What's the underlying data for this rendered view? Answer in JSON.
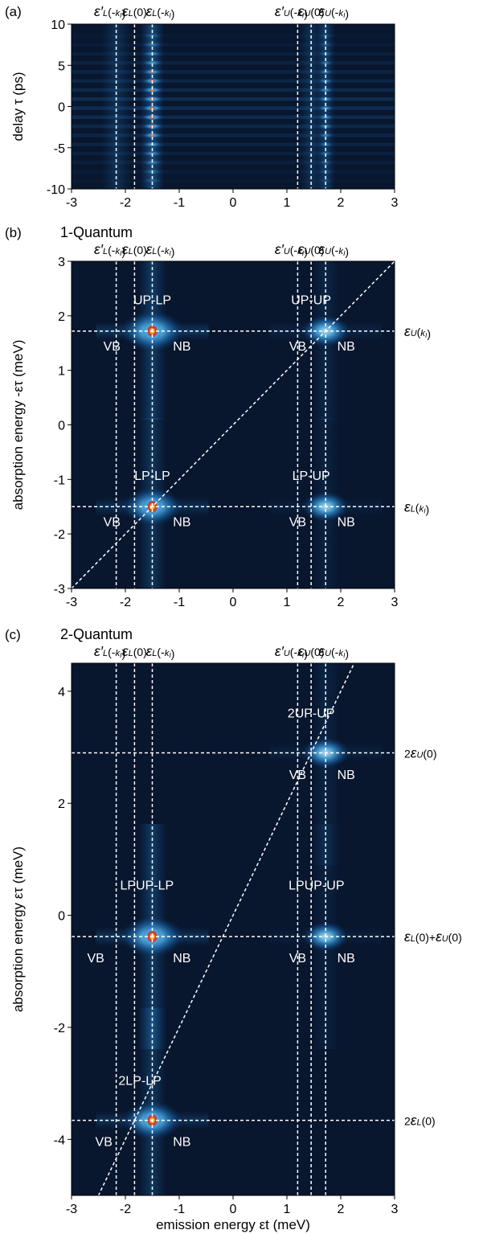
{
  "chart_data": [
    {
      "id": "a",
      "type": "heatmap",
      "panel_label": "(a)",
      "subtitle": "",
      "xlim": [
        -3,
        3
      ],
      "ylim": [
        -10,
        10
      ],
      "xticks": [
        -3,
        -2,
        -1,
        0,
        1,
        2,
        3
      ],
      "xtick_labels": [
        "-3",
        "-2",
        "-1",
        "0",
        "1",
        "2",
        "3"
      ],
      "yticks": [
        -10,
        -5,
        0,
        5,
        10
      ],
      "ytick_labels": [
        "-10",
        "-5",
        "0",
        "5",
        "10"
      ],
      "xlabel": "",
      "ylabel": "delay τ (ps)",
      "vlines": [
        {
          "x": -2.17,
          "label": "ε′L(-kI)"
        },
        {
          "x": -1.83,
          "label": "εL(0)"
        },
        {
          "x": -1.5,
          "label": "εL(-kI)"
        },
        {
          "x": 1.2,
          "label": "ε′U(-kI)"
        },
        {
          "x": 1.45,
          "label": "εU(0)"
        },
        {
          "x": 1.72,
          "label": "εU(-kI)"
        }
      ],
      "hlines": [],
      "diagonal": null,
      "peaks": [
        {
          "x": -1.5,
          "y": 0,
          "intensity": 1.0
        },
        {
          "x": 1.72,
          "y": 0,
          "intensity": 0.35
        }
      ],
      "annotations": []
    },
    {
      "id": "b",
      "type": "heatmap",
      "panel_label": "(b)",
      "subtitle": "1-Quantum",
      "xlim": [
        -3,
        3
      ],
      "ylim": [
        -3,
        3
      ],
      "xticks": [
        -3,
        -2,
        -1,
        0,
        1,
        2,
        3
      ],
      "xtick_labels": [
        "-3",
        "-2",
        "-1",
        "0",
        "1",
        "2",
        "3"
      ],
      "yticks": [
        -3,
        -2,
        -1,
        0,
        1,
        2,
        3
      ],
      "ytick_labels": [
        "-3",
        "-2",
        "-1",
        "0",
        "1",
        "2",
        "3"
      ],
      "xlabel": "",
      "ylabel": "absorption energy -ετ (meV)",
      "vlines": [
        {
          "x": -2.17,
          "label": "ε′L(-kI)"
        },
        {
          "x": -1.83,
          "label": "εL(0)"
        },
        {
          "x": -1.5,
          "label": "εL(-kI)"
        },
        {
          "x": 1.2,
          "label": "ε′U(-kI)"
        },
        {
          "x": 1.45,
          "label": "εU(0)"
        },
        {
          "x": 1.72,
          "label": "εU(-kI)"
        }
      ],
      "hlines": [
        {
          "y": 1.72,
          "label": "εU(kI)"
        },
        {
          "y": -1.5,
          "label": "εL(kI)"
        }
      ],
      "diagonal": {
        "slope": 1,
        "intercept": 0
      },
      "peaks": [
        {
          "x": -1.5,
          "y": 1.72,
          "intensity": 1.0
        },
        {
          "x": -1.5,
          "y": -1.5,
          "intensity": 0.85
        },
        {
          "x": 1.72,
          "y": 1.72,
          "intensity": 0.45
        },
        {
          "x": 1.72,
          "y": -1.5,
          "intensity": 0.35
        }
      ],
      "annotations": [
        {
          "text": "UP-LP",
          "x": -1.5,
          "y": 2.3
        },
        {
          "text": "VB",
          "x": -2.25,
          "y": 1.45
        },
        {
          "text": "NB",
          "x": -0.95,
          "y": 1.45
        },
        {
          "text": "UP-UP",
          "x": 1.45,
          "y": 2.3
        },
        {
          "text": "VB",
          "x": 1.2,
          "y": 1.45
        },
        {
          "text": "NB",
          "x": 2.1,
          "y": 1.45
        },
        {
          "text": "LP-LP",
          "x": -1.5,
          "y": -0.92
        },
        {
          "text": "VB",
          "x": -2.25,
          "y": -1.77
        },
        {
          "text": "NB",
          "x": -0.95,
          "y": -1.77
        },
        {
          "text": "LP-UP",
          "x": 1.45,
          "y": -0.92
        },
        {
          "text": "VB",
          "x": 1.2,
          "y": -1.77
        },
        {
          "text": "NB",
          "x": 2.1,
          "y": -1.77
        }
      ]
    },
    {
      "id": "c",
      "type": "heatmap",
      "panel_label": "(c)",
      "subtitle": "2-Quantum",
      "xlim": [
        -3,
        3
      ],
      "ylim": [
        -5,
        4.5
      ],
      "xticks": [
        -3,
        -2,
        -1,
        0,
        1,
        2,
        3
      ],
      "xtick_labels": [
        "-3",
        "-2",
        "-1",
        "0",
        "1",
        "2",
        "3"
      ],
      "yticks": [
        -4,
        -2,
        0,
        2,
        4
      ],
      "ytick_labels": [
        "-4",
        "-2",
        "0",
        "2",
        "4"
      ],
      "xlabel": "emission energy εt (meV)",
      "ylabel": "absorption energy ετ (meV)",
      "vlines": [
        {
          "x": -2.17,
          "label": "ε′L(-kI)"
        },
        {
          "x": -1.83,
          "label": "εL(0)"
        },
        {
          "x": -1.5,
          "label": "εL(-kI)"
        },
        {
          "x": 1.2,
          "label": "ε′U(-kI)"
        },
        {
          "x": 1.45,
          "label": "εU(0)"
        },
        {
          "x": 1.72,
          "label": "εU(-kI)"
        }
      ],
      "hlines": [
        {
          "y": 2.9,
          "label": "2εU(0)"
        },
        {
          "y": -0.38,
          "label": "εL(0)+εU(0)"
        },
        {
          "y": -3.66,
          "label": "2εL(0)"
        }
      ],
      "diagonal": {
        "slope": 2,
        "intercept": 0
      },
      "peaks": [
        {
          "x": -1.5,
          "y": -0.38,
          "intensity": 1.0
        },
        {
          "x": -1.5,
          "y": -3.66,
          "intensity": 0.85
        },
        {
          "x": 1.72,
          "y": 2.9,
          "intensity": 0.4
        },
        {
          "x": 1.72,
          "y": -0.38,
          "intensity": 0.32
        }
      ],
      "annotations": [
        {
          "text": "2UP-UP",
          "x": 1.45,
          "y": 3.62
        },
        {
          "text": "VB",
          "x": 1.2,
          "y": 2.52
        },
        {
          "text": "NB",
          "x": 2.1,
          "y": 2.52
        },
        {
          "text": "LPUP-LP",
          "x": -1.6,
          "y": 0.55
        },
        {
          "text": "LPUP-UP",
          "x": 1.55,
          "y": 0.55
        },
        {
          "text": "VB",
          "x": -2.55,
          "y": -0.75
        },
        {
          "text": "NB",
          "x": -0.95,
          "y": -0.75
        },
        {
          "text": "VB",
          "x": 1.2,
          "y": -0.75
        },
        {
          "text": "NB",
          "x": 2.1,
          "y": -0.75
        },
        {
          "text": "2LP-LP",
          "x": -1.73,
          "y": -2.94
        },
        {
          "text": "VB",
          "x": -2.4,
          "y": -4.03
        },
        {
          "text": "NB",
          "x": -0.95,
          "y": -4.03
        }
      ]
    }
  ]
}
